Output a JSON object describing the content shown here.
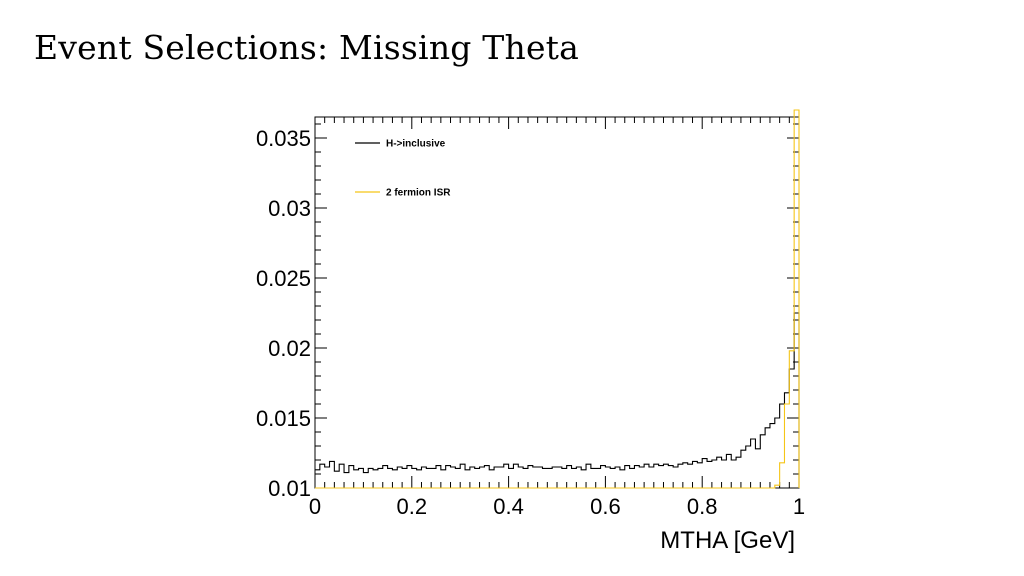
{
  "slide": {
    "title": "Event Selections: Missing Theta"
  },
  "chart_data": {
    "type": "line",
    "style": "step-histogram",
    "title": "",
    "xlabel": "MTHA [GeV]",
    "ylabel": "",
    "xlim": [
      0,
      1
    ],
    "ylim": [
      0.01,
      0.0365
    ],
    "x_ticks": [
      "0",
      "0.2",
      "0.4",
      "0.6",
      "0.8",
      "1"
    ],
    "y_ticks": [
      "0.01",
      "0.015",
      "0.02",
      "0.025",
      "0.03",
      "0.035"
    ],
    "grid": false,
    "legend_position": "top-left",
    "bins": 100,
    "series": [
      {
        "name": "H->inclusive",
        "color": "#000000",
        "values": [
          0.0113,
          0.0117,
          0.0115,
          0.0119,
          0.0112,
          0.0117,
          0.0111,
          0.0116,
          0.0113,
          0.0114,
          0.0111,
          0.0114,
          0.0113,
          0.0114,
          0.0116,
          0.0114,
          0.0113,
          0.0115,
          0.0114,
          0.0116,
          0.0114,
          0.0113,
          0.0115,
          0.0114,
          0.0114,
          0.0116,
          0.0113,
          0.0116,
          0.0115,
          0.0114,
          0.0117,
          0.0113,
          0.0115,
          0.0114,
          0.0115,
          0.0116,
          0.0113,
          0.0115,
          0.0115,
          0.0117,
          0.0114,
          0.0117,
          0.0115,
          0.0114,
          0.0116,
          0.0115,
          0.0115,
          0.0114,
          0.0114,
          0.0115,
          0.0115,
          0.0114,
          0.0116,
          0.0114,
          0.0115,
          0.0113,
          0.0117,
          0.0114,
          0.0114,
          0.0116,
          0.0115,
          0.0114,
          0.0115,
          0.0113,
          0.0116,
          0.0114,
          0.0116,
          0.0115,
          0.0117,
          0.0115,
          0.0117,
          0.0116,
          0.0117,
          0.0116,
          0.0115,
          0.0117,
          0.0118,
          0.0117,
          0.0119,
          0.0118,
          0.0121,
          0.0119,
          0.012,
          0.0122,
          0.012,
          0.0124,
          0.012,
          0.0122,
          0.0127,
          0.013,
          0.0135,
          0.0128,
          0.0138,
          0.0143,
          0.0146,
          0.015,
          0.016,
          0.0168,
          0.0185,
          0.0225
        ]
      },
      {
        "name": "2 fermion ISR",
        "color": "#f5c518",
        "values": [
          0,
          0,
          0,
          0,
          0,
          0,
          0,
          0,
          0,
          0,
          0,
          0,
          0,
          0,
          0,
          0,
          0,
          0,
          0,
          0,
          0,
          0,
          0,
          0,
          0,
          0,
          0,
          0,
          0,
          0,
          0,
          0,
          0,
          0,
          0,
          0,
          0,
          0,
          0,
          0,
          0,
          0,
          0,
          0,
          0,
          0,
          0,
          0,
          0,
          0,
          0,
          0,
          0,
          0,
          0,
          0,
          0,
          0,
          0,
          0,
          0,
          0,
          0,
          0,
          0,
          0,
          0,
          0,
          0,
          0,
          0,
          0,
          0,
          0,
          0,
          0,
          0,
          0,
          0,
          0,
          0,
          0,
          0,
          0,
          0,
          0,
          0,
          0,
          0,
          0,
          0,
          0,
          0,
          0,
          0,
          0.0102,
          0.0118,
          0.016,
          0.0198,
          0.037
        ]
      }
    ]
  }
}
